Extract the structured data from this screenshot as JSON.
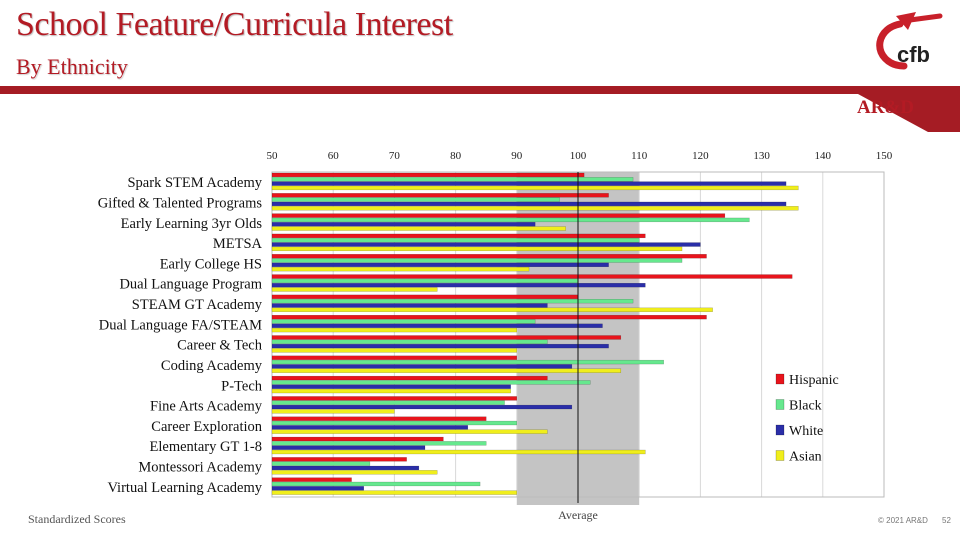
{
  "header": {
    "title": "School Feature/Curricula Interest",
    "subtitle": "By Ethnicity",
    "logo_text": "cfb",
    "badge": "AR&D"
  },
  "footer": {
    "left": "Standardized Scores",
    "copyright": "© 2021 AR&D",
    "page": "52"
  },
  "colors": {
    "brand": "#a51c24",
    "Hispanic": "#e8141c",
    "Black": "#66e88e",
    "White": "#2a2ea8",
    "Asian": "#f0ee1c",
    "average_band": "#c4c4c4"
  },
  "chart_data": {
    "type": "bar",
    "orientation": "horizontal",
    "categories": [
      "Spark STEM Academy",
      "Gifted & Talented Programs",
      "Early Learning 3yr Olds",
      "METSA",
      "Early College HS",
      "Dual Language Program",
      "STEAM GT Academy",
      "Dual Language FA/STEAM",
      "Career & Tech",
      "Coding Academy",
      "P-Tech",
      "Fine Arts Academy",
      "Career Exploration",
      "Elementary GT 1-8",
      "Montessori Academy",
      "Virtual Learning Academy"
    ],
    "series": [
      {
        "name": "Hispanic",
        "values": [
          101,
          105,
          124,
          111,
          121,
          135,
          100,
          121,
          107,
          90,
          95,
          90,
          85,
          78,
          72,
          63
        ]
      },
      {
        "name": "Black",
        "values": [
          109,
          97,
          128,
          110,
          117,
          100,
          109,
          93,
          95,
          114,
          102,
          88,
          90,
          85,
          66,
          84
        ]
      },
      {
        "name": "White",
        "values": [
          134,
          134,
          93,
          120,
          105,
          111,
          95,
          104,
          105,
          99,
          89,
          99,
          82,
          75,
          74,
          65
        ]
      },
      {
        "name": "Asian",
        "values": [
          136,
          136,
          98,
          117,
          92,
          77,
          122,
          90,
          90,
          107,
          89,
          70,
          95,
          111,
          77,
          90
        ]
      }
    ],
    "xlim": [
      50,
      150
    ],
    "xticks": [
      50,
      60,
      70,
      80,
      90,
      100,
      110,
      120,
      130,
      140,
      150
    ],
    "average_line": 100,
    "average_band": [
      90,
      110
    ],
    "average_label": "Average",
    "legend_position": "right",
    "grid": true
  }
}
